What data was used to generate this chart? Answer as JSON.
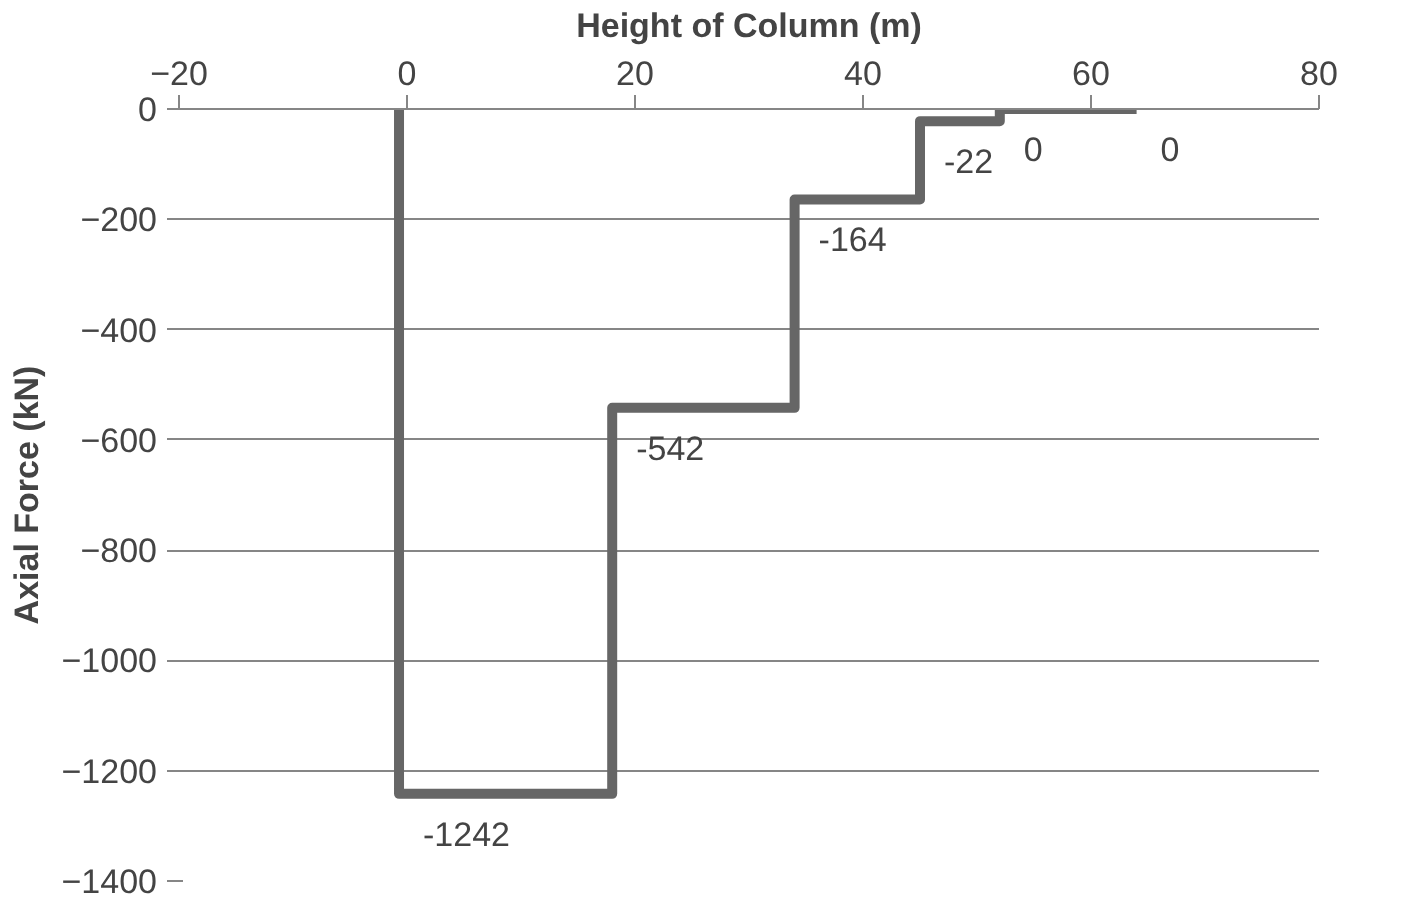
{
  "chart_data": {
    "type": "line",
    "xlabel": "Height of Column (m)",
    "ylabel": "Axial Force (kN)",
    "series": [
      {
        "color": "#666666",
        "x": [
          -0.7,
          -0.7,
          18,
          18,
          34,
          34,
          45,
          45,
          52,
          52,
          64
        ],
        "values": [
          0,
          -1242,
          -1242,
          -542,
          -542,
          -164,
          -164,
          -22,
          -22,
          0,
          0
        ],
        "value_labels": [
          null,
          "-1242",
          null,
          "-542",
          null,
          "-164",
          null,
          "-22",
          null,
          "0",
          "0"
        ]
      }
    ],
    "xlim": [
      -20,
      80
    ],
    "xticks": [
      -20,
      0,
      20,
      40,
      60,
      80
    ],
    "ylim": [
      -1400,
      0
    ],
    "yticks": [
      -1400,
      -1200,
      -1000,
      -800,
      -600,
      -400,
      -200,
      0
    ],
    "grid": "y",
    "marker": "none",
    "line_style": "solid"
  }
}
